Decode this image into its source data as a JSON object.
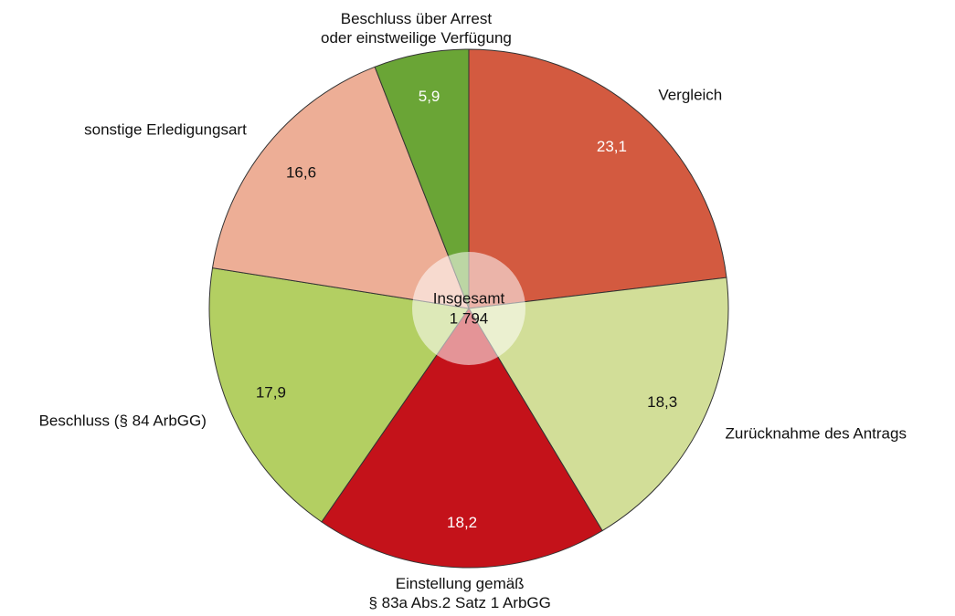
{
  "chart_data": {
    "type": "pie",
    "categories": [
      "Vergleich",
      "Zurücknahme des Antrags",
      "Einstellung gemäß\n§ 83a Abs.2 Satz 1 ArbGG",
      "Beschluss (§ 84 ArbGG)",
      "sonstige Erledigungsart",
      "Beschluss über Arrest\noder einstweilige Verfügung"
    ],
    "values": [
      23.1,
      18.3,
      18.2,
      17.9,
      16.6,
      5.9
    ],
    "value_labels": [
      "23,1",
      "18,3",
      "18,2",
      "17,9",
      "16,6",
      "5,9"
    ],
    "colors": [
      "#d35a40",
      "#d2de98",
      "#c4121a",
      "#b3cf62",
      "#edae96",
      "#6aa536"
    ],
    "center_title": "Insgesamt",
    "total": {
      "value": 1794,
      "label": "1 794"
    }
  }
}
